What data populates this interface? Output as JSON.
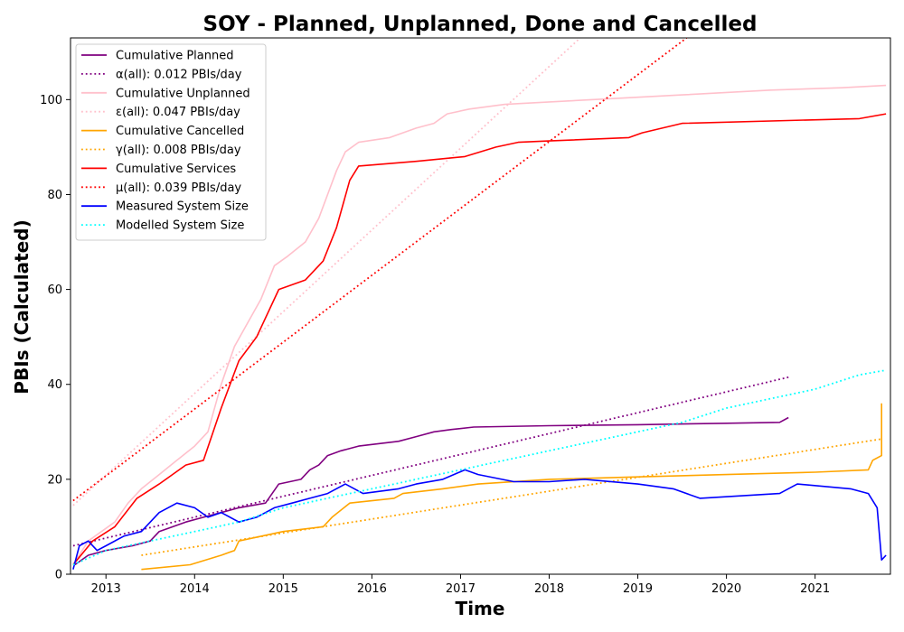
{
  "chart_data": {
    "type": "line",
    "title": "SOY - Planned, Unplanned, Done  and Cancelled",
    "xlabel": "Time",
    "ylabel": "PBIs (Calculated)",
    "xlim": [
      2012.6,
      2021.85
    ],
    "ylim": [
      0,
      113
    ],
    "xticks": [
      2013,
      2014,
      2015,
      2016,
      2017,
      2018,
      2019,
      2020,
      2021
    ],
    "xtick_labels": [
      "2013",
      "2014",
      "2015",
      "2016",
      "2017",
      "2018",
      "2019",
      "2020",
      "2021"
    ],
    "yticks": [
      0,
      20,
      40,
      60,
      80,
      100
    ],
    "ytick_labels": [
      "0",
      "20",
      "40",
      "60",
      "80",
      "100"
    ],
    "grid": false,
    "legend_position": "top-left",
    "series": [
      {
        "name": "Cumulative Planned",
        "color": "#800080",
        "style": "solid",
        "x": [
          2012.65,
          2012.8,
          2013.0,
          2013.3,
          2013.5,
          2013.6,
          2013.9,
          2014.1,
          2014.3,
          2014.5,
          2014.8,
          2014.95,
          2015.2,
          2015.3,
          2015.4,
          2015.5,
          2015.65,
          2015.85,
          2016.3,
          2016.5,
          2016.7,
          2016.9,
          2017.15,
          2018.0,
          2019.0,
          2020.0,
          2020.6,
          2020.7
        ],
        "y": [
          2,
          4,
          5,
          6,
          7,
          9,
          11,
          12,
          13,
          14,
          15,
          19,
          20,
          22,
          23,
          25,
          26,
          27,
          28,
          29,
          30,
          30.5,
          31,
          31.3,
          31.5,
          31.8,
          32,
          33
        ]
      },
      {
        "name": "α(all): 0.012 PBIs/day",
        "color": "#800080",
        "style": "dotted",
        "x": [
          2012.63,
          2020.7
        ],
        "y": [
          6,
          41.5
        ]
      },
      {
        "name": "Cumulative Unplanned",
        "color": "#FFC0CB",
        "style": "solid",
        "x": [
          2012.63,
          2012.8,
          2012.95,
          2013.1,
          2013.25,
          2013.4,
          2013.6,
          2013.8,
          2014.0,
          2014.15,
          2014.3,
          2014.45,
          2014.6,
          2014.75,
          2014.9,
          2015.05,
          2015.25,
          2015.4,
          2015.5,
          2015.6,
          2015.7,
          2015.85,
          2016.2,
          2016.5,
          2016.7,
          2016.85,
          2017.1,
          2017.5,
          2018.5,
          2019.5,
          2020.5,
          2021.3,
          2021.8
        ],
        "y": [
          2,
          7,
          9,
          11,
          15,
          18,
          21,
          24,
          27,
          30,
          40,
          48,
          53,
          58,
          65,
          67,
          70,
          75,
          80,
          85,
          89,
          91,
          92,
          94,
          95,
          97,
          98,
          99,
          100,
          101,
          102,
          102.5,
          103
        ]
      },
      {
        "name": "ε(all): 0.047 PBIs/day",
        "color": "#FFC0CB",
        "style": "dotted",
        "x": [
          2012.63,
          2018.35
        ],
        "y": [
          14.5,
          113
        ]
      },
      {
        "name": "Cumulative Cancelled",
        "color": "#FFA500",
        "style": "solid",
        "x": [
          2013.4,
          2013.95,
          2014.3,
          2014.45,
          2014.5,
          2015.0,
          2015.45,
          2015.55,
          2015.75,
          2016.25,
          2016.35,
          2016.8,
          2017.2,
          2018.0,
          2019.0,
          2020.0,
          2021.0,
          2021.6,
          2021.65,
          2021.75,
          2021.75
        ],
        "y": [
          1,
          2,
          4,
          5,
          7,
          9,
          10,
          12,
          15,
          16,
          17,
          18,
          19,
          20,
          20.5,
          21,
          21.5,
          22,
          24,
          25,
          36
        ]
      },
      {
        "name": "γ(all): 0.008 PBIs/day",
        "color": "#FFA500",
        "style": "dotted",
        "x": [
          2013.4,
          2021.75
        ],
        "y": [
          4,
          28.5
        ]
      },
      {
        "name": "Cumulative Services",
        "color": "#FF0000",
        "style": "solid",
        "x": [
          2012.63,
          2012.85,
          2013.1,
          2013.35,
          2013.6,
          2013.9,
          2014.1,
          2014.3,
          2014.5,
          2014.7,
          2014.95,
          2015.25,
          2015.45,
          2015.6,
          2015.75,
          2015.85,
          2016.5,
          2017.05,
          2017.4,
          2017.65,
          2018.0,
          2018.9,
          2019.05,
          2019.5,
          2021.5,
          2021.8
        ],
        "y": [
          2,
          7,
          10,
          16,
          19,
          23,
          24,
          35,
          45,
          50,
          60,
          62,
          66,
          73,
          83,
          86,
          87,
          88,
          90,
          91,
          91.3,
          92,
          93,
          95,
          96,
          97
        ]
      },
      {
        "name": "μ(all): 0.039 PBIs/day",
        "color": "#FF0000",
        "style": "dotted",
        "x": [
          2012.63,
          2019.55
        ],
        "y": [
          15.5,
          113
        ]
      },
      {
        "name": "Measured System Size",
        "color": "#0000FF",
        "style": "solid",
        "x": [
          2012.63,
          2012.7,
          2012.8,
          2012.9,
          2013.0,
          2013.2,
          2013.4,
          2013.6,
          2013.8,
          2014.0,
          2014.15,
          2014.3,
          2014.5,
          2014.7,
          2014.9,
          2015.1,
          2015.3,
          2015.5,
          2015.7,
          2015.9,
          2016.3,
          2016.5,
          2016.8,
          2017.05,
          2017.2,
          2017.6,
          2018.0,
          2018.4,
          2019.0,
          2019.4,
          2019.7,
          2020.6,
          2020.8,
          2021.4,
          2021.6,
          2021.7,
          2021.75,
          2021.8
        ],
        "y": [
          1,
          6,
          7,
          5,
          6,
          8,
          9,
          13,
          15,
          14,
          12,
          13,
          11,
          12,
          14,
          15,
          16,
          17,
          19,
          17,
          18,
          19,
          20,
          22,
          21,
          19.5,
          19.5,
          20,
          19,
          18,
          16,
          17,
          19,
          18,
          17,
          14,
          3,
          4
        ]
      },
      {
        "name": "Modelled System Size",
        "color": "#00FFFF",
        "style": "dotted",
        "x": [
          2012.63,
          2013.0,
          2013.5,
          2014.0,
          2014.5,
          2015.0,
          2015.5,
          2016.0,
          2016.5,
          2017.0,
          2017.5,
          2018.0,
          2018.5,
          2019.0,
          2019.5,
          2020.0,
          2020.5,
          2021.0,
          2021.5,
          2021.8
        ],
        "y": [
          2,
          5,
          7,
          9,
          11,
          14,
          16,
          18,
          20,
          22,
          24,
          26,
          28,
          30,
          32,
          35,
          37,
          39,
          42,
          43
        ]
      }
    ]
  }
}
